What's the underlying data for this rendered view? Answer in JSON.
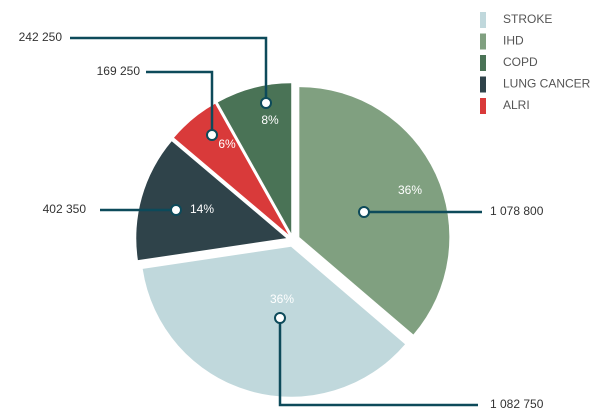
{
  "chart_data": {
    "type": "pie",
    "categories": [
      "STROKE",
      "IHD",
      "COPD",
      "LUNG CANCER",
      "ALRI"
    ],
    "values": [
      1082750,
      1078800,
      242250,
      402350,
      169250
    ],
    "value_labels": [
      "1 082 750",
      "1 078 800",
      "242 250",
      "402 350",
      "169 250"
    ],
    "percents": [
      36,
      36,
      8,
      14,
      6
    ],
    "percent_labels": [
      "36%",
      "36%",
      "8%",
      "14%",
      "6%"
    ],
    "colors": [
      "#c0d8dc",
      "#80a080",
      "#4a7356",
      "#2f434a",
      "#d93a3a"
    ],
    "legend": "top-right"
  }
}
